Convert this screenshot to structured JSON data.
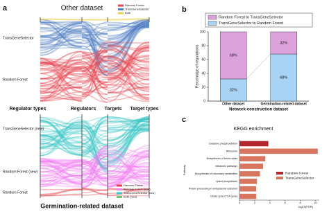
{
  "panel_labels": [
    "a",
    "b",
    "c"
  ],
  "sankey": [
    {
      "title": "Other dataset",
      "node_labels": [
        "TransGeneSelector",
        "Random Forest"
      ],
      "legend": [
        {
          "name": "Random Forest",
          "color": "#e5434d"
        },
        {
          "name": "TransGeneSelector",
          "color": "#4f7fc4"
        },
        {
          "name": "Both",
          "color": "#e9d24b"
        }
      ]
    },
    {
      "title": "Germination-related dataset",
      "node_labels": [
        "TransGeneSelector (new)",
        "Random Forest (new)",
        "Random Forest"
      ],
      "legend": [
        {
          "name": "Random Forest",
          "color": "#e5434d"
        },
        {
          "name": "Random Forest (new)",
          "color": "#f07cf0"
        },
        {
          "name": "TransGeneSelector (new)",
          "color": "#3cc6c6"
        },
        {
          "name": "Both (new)",
          "color": "#6cc96c"
        }
      ]
    }
  ],
  "column_labels": [
    "Regulator types",
    "Regulators",
    "Targets",
    "Target types"
  ],
  "chart_data": [
    {
      "type": "stacked-bar",
      "categories": [
        "Other dataset",
        "Germination-related dataset"
      ],
      "series": [
        {
          "name": "TransGeneSelector to Random Forest",
          "color": "#a9d3f4",
          "values": [
            32,
            68
          ],
          "value_labels": [
            "32%",
            "68%"
          ]
        },
        {
          "name": "Random Forest to TransGeneSelector",
          "color": "#dba2dc",
          "values": [
            68,
            32
          ],
          "value_labels": [
            "68%",
            "32%"
          ]
        }
      ],
      "y_label": "Percentage of regulations",
      "x_label": "Network-construction dataset",
      "ylim": [
        0,
        100
      ],
      "yticks": [
        0,
        20,
        40,
        60,
        80,
        100
      ]
    },
    {
      "type": "hbar",
      "title": "KEGG enrichment",
      "y_label": "Pathway",
      "x_label": "-log10(FDR)",
      "categories": [
        "Oxidative phosphorylation",
        "Ribosome",
        "Biosynthesis of amino acids",
        "Metabolic pathways",
        "Biosynthesis of secondary metabolites",
        "Lysine biosynthesis",
        "Protein processing in endoplasmic reticulum",
        "Citrate cycle (TCA cycle)"
      ],
      "series": [
        {
          "name": "Random Forest",
          "color": "#b3262e",
          "values": [
            3.8,
            null,
            null,
            null,
            null,
            null,
            null,
            null
          ]
        },
        {
          "name": "TransGeneSelector",
          "color": "#d9745f",
          "values": [
            null,
            10.3,
            3.4,
            3.1,
            2.7,
            2.3,
            2.2,
            2.2
          ]
        }
      ],
      "xlim": [
        0,
        10.5
      ],
      "xticks": [
        0,
        2,
        4,
        6,
        8,
        10
      ]
    }
  ]
}
